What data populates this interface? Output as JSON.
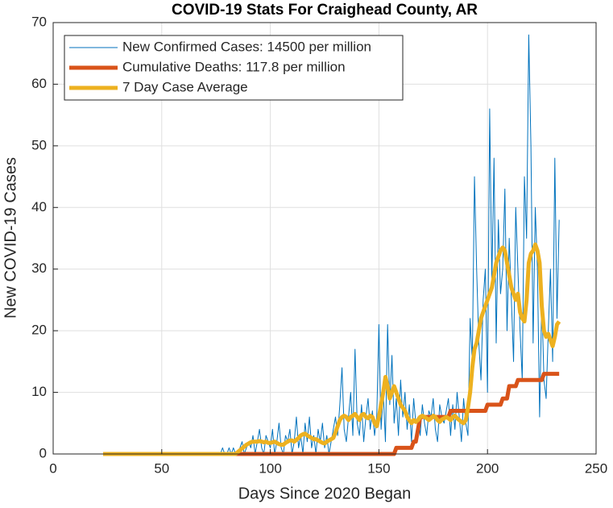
{
  "chart_data": {
    "type": "line",
    "title": "COVID-19 Stats For Craighead County, AR",
    "xlabel": "Days Since 2020 Began",
    "ylabel": "New COVID-19 Cases",
    "xlim": [
      0,
      250
    ],
    "xticks": [
      0,
      50,
      100,
      150,
      200,
      250
    ],
    "ylim": [
      0,
      70
    ],
    "yticks": [
      0,
      10,
      20,
      30,
      40,
      50,
      60,
      70
    ],
    "grid": true,
    "legend": "upper left",
    "x": [
      23,
      24,
      25,
      26,
      27,
      28,
      29,
      30,
      31,
      32,
      33,
      34,
      35,
      36,
      37,
      38,
      39,
      40,
      41,
      42,
      43,
      44,
      45,
      46,
      47,
      48,
      49,
      50,
      51,
      52,
      53,
      54,
      55,
      56,
      57,
      58,
      59,
      60,
      61,
      62,
      63,
      64,
      65,
      66,
      67,
      68,
      69,
      70,
      71,
      72,
      73,
      74,
      75,
      76,
      77,
      78,
      79,
      80,
      81,
      82,
      83,
      84,
      85,
      86,
      87,
      88,
      89,
      90,
      91,
      92,
      93,
      94,
      95,
      96,
      97,
      98,
      99,
      100,
      101,
      102,
      103,
      104,
      105,
      106,
      107,
      108,
      109,
      110,
      111,
      112,
      113,
      114,
      115,
      116,
      117,
      118,
      119,
      120,
      121,
      122,
      123,
      124,
      125,
      126,
      127,
      128,
      129,
      130,
      131,
      132,
      133,
      134,
      135,
      136,
      137,
      138,
      139,
      140,
      141,
      142,
      143,
      144,
      145,
      146,
      147,
      148,
      149,
      150,
      151,
      152,
      153,
      154,
      155,
      156,
      157,
      158,
      159,
      160,
      161,
      162,
      163,
      164,
      165,
      166,
      167,
      168,
      169,
      170,
      171,
      172,
      173,
      174,
      175,
      176,
      177,
      178,
      179,
      180,
      181,
      182,
      183,
      184,
      185,
      186,
      187,
      188,
      189,
      190,
      191,
      192,
      193,
      194,
      195,
      196,
      197,
      198,
      199,
      200,
      201,
      202,
      203,
      204,
      205,
      206,
      207,
      208,
      209,
      210,
      211,
      212,
      213,
      214,
      215,
      216,
      217,
      218,
      219,
      220,
      221,
      222,
      223,
      224,
      225,
      226,
      227,
      228,
      229,
      230,
      231,
      232,
      233
    ],
    "series": [
      {
        "name": "New Confirmed Cases: 14500 per million",
        "color": "#0072BD",
        "width": 1,
        "values": [
          0,
          0,
          0,
          0,
          0,
          0,
          0,
          0,
          0,
          0,
          0,
          0,
          0,
          0,
          0,
          0,
          0,
          0,
          0,
          0,
          0,
          0,
          0,
          0,
          0,
          0,
          0,
          0,
          0,
          0,
          0,
          0,
          0,
          0,
          0,
          0,
          0,
          0,
          0,
          0,
          0,
          0,
          0,
          0,
          0,
          0,
          0,
          0,
          0,
          0,
          0,
          0,
          0,
          0,
          0,
          1,
          0,
          0,
          1,
          0,
          1,
          0,
          0,
          1,
          2,
          0,
          1,
          2,
          1,
          3,
          0,
          2,
          4,
          1,
          0,
          3,
          2,
          1,
          4,
          0,
          2,
          5,
          1,
          0,
          3,
          2,
          4,
          0,
          2,
          6,
          1,
          3,
          0,
          5,
          2,
          6,
          1,
          3,
          0,
          4,
          2,
          5,
          1,
          3,
          0,
          2,
          4,
          6,
          3,
          8,
          14,
          4,
          2,
          6,
          10,
          3,
          17,
          5,
          3,
          8,
          2,
          6,
          9,
          4,
          7,
          3,
          6,
          21,
          4,
          10,
          2,
          21,
          8,
          16,
          5,
          9,
          3,
          12,
          6,
          10,
          4,
          8,
          2,
          9,
          5,
          6,
          3,
          8,
          5,
          3,
          7,
          6,
          9,
          4,
          2,
          8,
          6,
          5,
          7,
          9,
          3,
          8,
          4,
          10,
          6,
          2,
          9,
          5,
          3,
          22,
          15,
          45,
          30,
          18,
          12,
          25,
          30,
          10,
          56,
          28,
          48,
          18,
          38,
          26,
          30,
          43,
          20,
          35,
          25,
          15,
          40,
          30,
          20,
          12,
          45,
          35,
          68,
          50,
          18,
          40,
          30,
          6,
          25,
          12,
          9,
          20,
          30,
          15,
          48,
          22,
          38
        ]
      },
      {
        "name": "Cumulative Deaths: 117.8 per million",
        "color": "#D95319",
        "width": 5,
        "values": [
          0,
          0,
          0,
          0,
          0,
          0,
          0,
          0,
          0,
          0,
          0,
          0,
          0,
          0,
          0,
          0,
          0,
          0,
          0,
          0,
          0,
          0,
          0,
          0,
          0,
          0,
          0,
          0,
          0,
          0,
          0,
          0,
          0,
          0,
          0,
          0,
          0,
          0,
          0,
          0,
          0,
          0,
          0,
          0,
          0,
          0,
          0,
          0,
          0,
          0,
          0,
          0,
          0,
          0,
          0,
          0,
          0,
          0,
          0,
          0,
          0,
          0,
          0,
          0,
          0,
          0,
          0,
          0,
          0,
          0,
          0,
          0,
          0,
          0,
          0,
          0,
          0,
          0,
          0,
          0,
          0,
          0,
          0,
          0,
          0,
          0,
          0,
          0,
          0,
          0,
          0,
          0,
          0,
          0,
          0,
          0,
          0,
          0,
          0,
          0,
          0,
          0,
          0,
          0,
          0,
          0,
          0,
          0,
          0,
          0,
          0,
          0,
          0,
          0,
          0,
          0,
          0,
          0,
          0,
          0,
          0,
          0,
          0,
          0,
          0,
          0,
          0,
          0,
          0,
          0,
          0,
          0,
          0,
          0,
          0,
          1,
          1,
          1,
          1,
          1,
          1,
          1,
          1,
          2,
          2,
          4,
          6,
          6,
          6,
          6,
          6,
          6,
          6,
          6,
          6,
          6,
          6,
          6,
          6,
          6,
          7,
          7,
          7,
          7,
          7,
          7,
          7,
          7,
          7,
          7,
          7,
          7,
          7,
          7,
          7,
          7,
          7,
          8,
          8,
          8,
          8,
          8,
          8,
          8,
          9,
          9,
          9,
          11,
          11,
          11,
          11,
          12,
          12,
          12,
          12,
          12,
          12,
          12,
          12,
          12,
          12,
          12,
          12,
          13,
          13,
          13,
          13,
          13,
          13,
          13,
          13
        ]
      },
      {
        "name": "7 Day Case Average",
        "color": "#EDB120",
        "width": 5,
        "values": [
          0,
          0,
          0,
          0,
          0,
          0,
          0,
          0,
          0,
          0,
          0,
          0,
          0,
          0,
          0,
          0,
          0,
          0,
          0,
          0,
          0,
          0,
          0,
          0,
          0,
          0,
          0,
          0,
          0,
          0,
          0,
          0,
          0,
          0,
          0,
          0,
          0,
          0,
          0,
          0,
          0,
          0,
          0,
          0,
          0,
          0,
          0,
          0,
          0,
          0,
          0,
          0,
          0,
          0,
          0,
          0,
          0,
          0,
          0,
          0,
          0,
          0,
          0.3,
          0.6,
          0.9,
          1.2,
          1.5,
          1.7,
          1.9,
          2,
          2,
          2,
          2.1,
          2,
          1.9,
          2,
          1.8,
          1.8,
          1.9,
          2,
          1.8,
          1.6,
          1.5,
          1.5,
          1.8,
          2,
          2.2,
          2.2,
          2,
          2.3,
          2.6,
          3,
          3.2,
          3.3,
          3,
          2.8,
          2.6,
          2.4,
          2.4,
          2.2,
          2,
          1.8,
          1.7,
          2,
          2.2,
          2.4,
          2.6,
          3.5,
          4.5,
          5.5,
          6,
          6.2,
          6,
          5.5,
          6,
          6.2,
          6.5,
          6,
          5.5,
          6.3,
          6.5,
          6,
          5.8,
          6.2,
          6,
          5,
          4.5,
          6,
          8,
          10,
          12.5,
          11,
          9,
          10,
          11,
          10,
          9,
          8,
          7.5,
          7,
          6,
          5.5,
          5,
          5.5,
          5.2,
          5.5,
          6,
          6.2,
          6,
          5.8,
          5.5,
          5.8,
          6.2,
          6,
          5.5,
          5.2,
          5.6,
          5.8,
          6,
          5.8,
          5.5,
          6,
          6.2,
          5.8,
          5.5,
          5.2,
          5,
          5.5,
          7.5,
          10,
          14,
          17,
          18,
          20,
          22,
          23,
          24,
          25,
          26,
          27,
          29,
          31,
          32,
          33,
          33.5,
          33,
          31,
          29,
          27,
          26,
          25,
          26,
          23,
          22,
          21.5,
          25,
          31,
          32.5,
          33,
          34,
          33,
          31,
          24,
          20,
          19,
          19.5,
          18.5,
          17.5,
          19,
          21,
          21.5
        ]
      }
    ]
  }
}
